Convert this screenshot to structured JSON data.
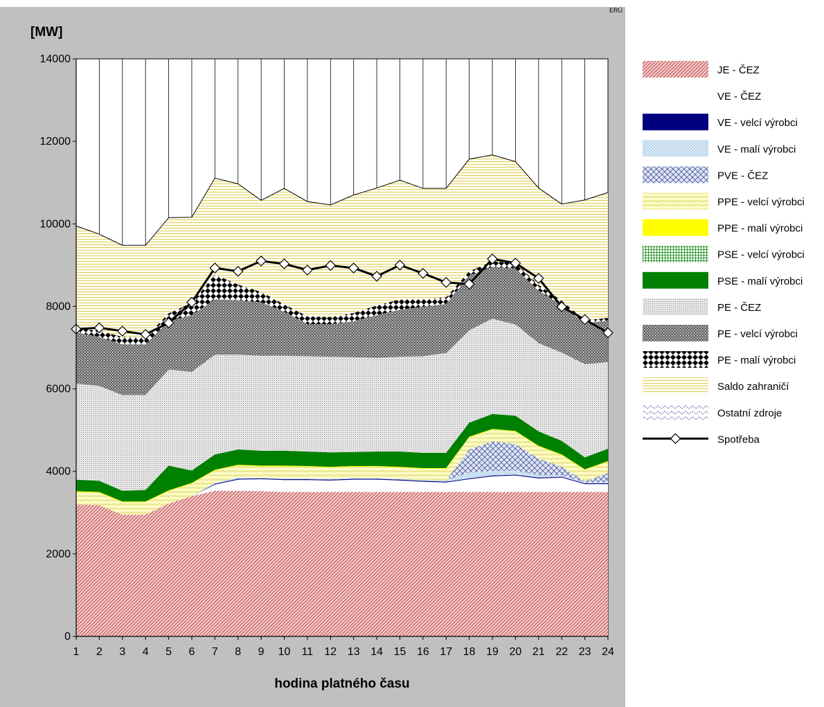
{
  "corner_label": "ERÚ",
  "chart_data": {
    "type": "area",
    "ylabel": "[MW]",
    "xlabel": "hodina platného času",
    "ylim": [
      0,
      14000
    ],
    "yticks": [
      0,
      2000,
      4000,
      6000,
      8000,
      10000,
      12000,
      14000
    ],
    "x": [
      1,
      2,
      3,
      4,
      5,
      6,
      7,
      8,
      9,
      10,
      11,
      12,
      13,
      14,
      15,
      16,
      17,
      18,
      19,
      20,
      21,
      22,
      23,
      24
    ],
    "x_tick_labels": [
      "1",
      "2",
      "3",
      "4",
      "5",
      "6",
      "7",
      "8",
      "9",
      "10",
      "11",
      "12",
      "13",
      "14",
      "15",
      "16",
      "17",
      "18",
      "19",
      "20",
      "21",
      "22",
      "23",
      "24"
    ],
    "grid": "vertical",
    "legend_position": "right",
    "stacked": true,
    "series": [
      {
        "name": "JE - ČEZ",
        "color": "#c0504d",
        "pattern": "diag-red",
        "values": [
          3200,
          3180,
          2950,
          2950,
          3220,
          3400,
          3530,
          3530,
          3520,
          3500,
          3500,
          3500,
          3500,
          3500,
          3500,
          3500,
          3500,
          3500,
          3500,
          3500,
          3500,
          3500,
          3500,
          3500
        ]
      },
      {
        "name": "VE - ČEZ",
        "color": "#ffffff",
        "pattern": "solid-white",
        "values": [
          0,
          0,
          0,
          0,
          0,
          0,
          150,
          270,
          290,
          290,
          290,
          280,
          300,
          300,
          280,
          250,
          230,
          310,
          380,
          400,
          330,
          350,
          190,
          190
        ]
      },
      {
        "name": "VE - velcí výrobci",
        "color": "#000080",
        "pattern": "solid-navy",
        "values": [
          0,
          0,
          0,
          0,
          0,
          0,
          20,
          20,
          20,
          20,
          20,
          20,
          20,
          20,
          20,
          20,
          20,
          20,
          20,
          20,
          20,
          20,
          20,
          20
        ]
      },
      {
        "name": "VE - malí výrobci",
        "color": "#bdd7ee",
        "pattern": "dots-blue",
        "values": [
          0,
          0,
          0,
          0,
          0,
          0,
          20,
          30,
          20,
          20,
          20,
          20,
          20,
          20,
          20,
          20,
          30,
          140,
          110,
          100,
          60,
          40,
          20,
          20
        ]
      },
      {
        "name": "PVE - ČEZ",
        "color": "#6677aa",
        "pattern": "crosshatch-blue",
        "values": [
          0,
          0,
          0,
          0,
          0,
          0,
          0,
          0,
          0,
          0,
          0,
          0,
          0,
          0,
          0,
          0,
          0,
          560,
          720,
          640,
          400,
          200,
          30,
          230
        ]
      },
      {
        "name": "PPE - velcí výrobci",
        "color": "#ffff99",
        "pattern": "zigzag-yellow",
        "values": [
          300,
          300,
          300,
          300,
          300,
          300,
          300,
          290,
          270,
          290,
          280,
          270,
          270,
          270,
          270,
          270,
          280,
          290,
          280,
          300,
          290,
          280,
          270,
          270
        ]
      },
      {
        "name": "PPE - malí výrobci",
        "color": "#ffff00",
        "pattern": "solid-yellow",
        "values": [
          20,
          20,
          20,
          20,
          20,
          20,
          20,
          20,
          20,
          20,
          20,
          20,
          20,
          20,
          20,
          20,
          20,
          20,
          20,
          20,
          20,
          20,
          20,
          20
        ]
      },
      {
        "name": "PSE - velcí výrobci",
        "color": "#00a000",
        "pattern": "grid-green",
        "values": [
          0,
          0,
          0,
          0,
          0,
          0,
          0,
          0,
          0,
          0,
          0,
          0,
          0,
          0,
          0,
          0,
          0,
          0,
          0,
          0,
          0,
          0,
          0,
          0
        ]
      },
      {
        "name": "PSE - malí výrobci",
        "color": "#008000",
        "pattern": "solid-green",
        "values": [
          280,
          270,
          260,
          280,
          600,
          300,
          370,
          370,
          360,
          360,
          350,
          350,
          340,
          350,
          370,
          370,
          370,
          340,
          360,
          370,
          350,
          330,
          290,
          300
        ]
      },
      {
        "name": "PE - ČEZ",
        "color": "#d9d9d9",
        "pattern": "fine-dots",
        "values": [
          2330,
          2300,
          2320,
          2300,
          2330,
          2390,
          2420,
          2300,
          2300,
          2300,
          2310,
          2320,
          2300,
          2270,
          2300,
          2340,
          2420,
          2240,
          2310,
          2210,
          2140,
          2140,
          2260,
          2100
        ]
      },
      {
        "name": "PE - velcí výrobci",
        "color": "#606060",
        "pattern": "dense-dots",
        "values": [
          1240,
          1190,
          1230,
          1230,
          1170,
          1380,
          1340,
          1320,
          1300,
          1070,
          780,
          790,
          870,
          1040,
          1140,
          1200,
          1190,
          1330,
          1260,
          1360,
          1270,
          1150,
          990,
          1010
        ]
      },
      {
        "name": "PE - malí výrobci",
        "color": "#000000",
        "pattern": "checker-black",
        "values": [
          90,
          150,
          180,
          170,
          190,
          300,
          600,
          380,
          250,
          180,
          190,
          170,
          200,
          230,
          250,
          180,
          160,
          100,
          130,
          140,
          140,
          110,
          70,
          60
        ]
      },
      {
        "name": "Saldo zahraničí",
        "color": "#e8d060",
        "pattern": "hlines-yellow",
        "values": [
          2490,
          2340,
          2220,
          2230,
          2320,
          2070,
          2340,
          2440,
          2220,
          2810,
          2780,
          2720,
          2860,
          2850,
          2890,
          2690,
          2640,
          2720,
          2580,
          2450,
          2350,
          2340,
          2920,
          3040
        ]
      },
      {
        "name": "Ostatní zdroje",
        "color": "#3030a0",
        "pattern": "wave-blue",
        "values": [
          0,
          0,
          0,
          0,
          0,
          0,
          0,
          0,
          0,
          0,
          0,
          0,
          0,
          0,
          0,
          0,
          0,
          0,
          0,
          0,
          0,
          0,
          0,
          0
        ]
      }
    ],
    "lines": [
      {
        "name": "Spotřeba",
        "color": "#000000",
        "marker": "diamond",
        "values": [
          7450,
          7480,
          7400,
          7320,
          7600,
          8100,
          8930,
          8850,
          9100,
          9030,
          8880,
          8990,
          8930,
          8730,
          9000,
          8800,
          8580,
          8540,
          9150,
          9050,
          8680,
          7990,
          7680,
          7360
        ]
      }
    ]
  }
}
